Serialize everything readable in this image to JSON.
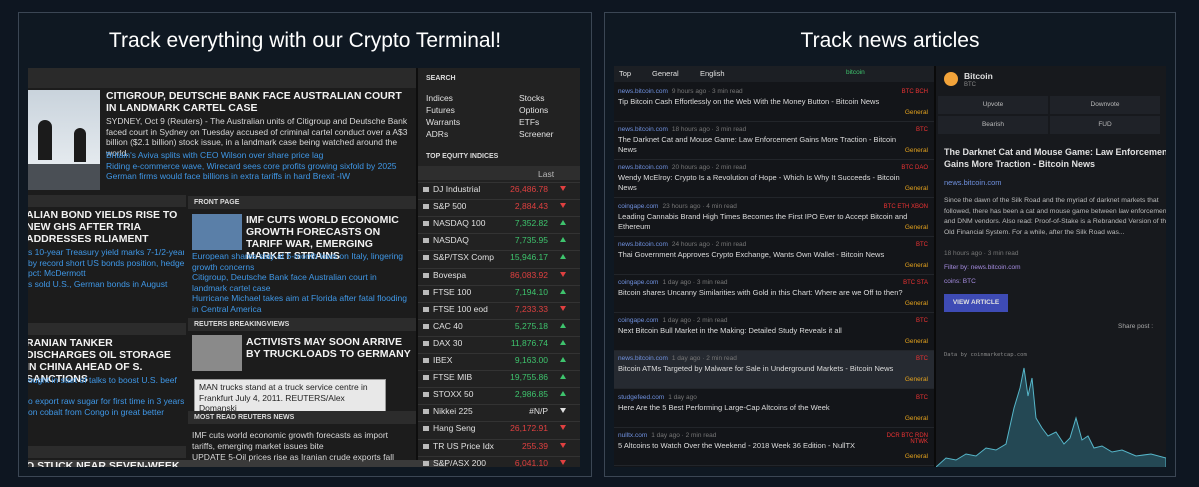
{
  "left": {
    "title": "Track everything with our Crypto Terminal!",
    "top_story": {
      "headline": "CITIGROUP, DEUTSCHE BANK FACE AUSTRALIAN COURT IN LANDMARK CARTEL CASE",
      "body": "SYDNEY, Oct 9 (Reuters) - The Australian units of Citigroup and Deutsche Bank faced court in Sydney on Tuesday accused of criminal cartel conduct over a A$3 billion ($2.1 billion) stock issue, in a landmark case being watched around the world.",
      "links": [
        "Britain's Aviva splits with CEO Wilson over share price lag",
        "Riding e-commerce wave, Wirecard sees core profits growing sixfold by 2025",
        "German firms would face billions in extra tariffs in hard Brexit -IW"
      ]
    },
    "side_stories": [
      {
        "headline": "ALIAN BOND YIELDS RISE TO NEW GHS AFTER TRIA ADDRESSES RLIAMENT",
        "links": [
          "s 10-year Treasury yield marks 7-1/2-year",
          "by record short US bonds position, hedge",
          "pct: McDermott",
          "s sold U.S., German bonds in August"
        ]
      },
      {
        "headline": "RANIAN TANKER DISCHARGES OIL STORAGE IN CHINA AHEAD OF S. SANCTIONS",
        "links": [
          "ought in start of talks to boost U.S. beef",
          "",
          "o export raw sugar for first time in 3 years",
          "on cobalt from Congo in great better"
        ]
      },
      {
        "headline": "O STUCK NEAR SEVEN-WEEK LOW",
        "links": []
      }
    ],
    "front_page": {
      "label": "FRONT PAGE",
      "headline": "IMF CUTS WORLD ECONOMIC GROWTH FORECASTS ON TARIFF WAR, EMERGING MARKET STRAINS",
      "links": [
        "European shares stay at 6-month lows on Italy, lingering growth concerns",
        "Citigroup, Deutsche Bank face Australian court in landmark cartel case",
        "Hurricane Michael takes aim at Florida after fatal flooding in Central America"
      ]
    },
    "breakingviews": {
      "label": "REUTERS BREAKINGVIEWS",
      "headline": "ACTIVISTS MAY SOON ARRIVE BY TRUCKLOADS TO GERMANY",
      "tooltip": "MAN trucks stand at a truck service centre in Frankfurt July 4, 2011. REUTERS/Alex Domanski"
    },
    "most_read": {
      "label": "MOST READ REUTERS NEWS",
      "items": [
        "IMF cuts world economic growth forecasts as import tariffs, emerging market issues bite",
        "UPDATE 5-Oil prices rise as Iranian crude exports fall"
      ]
    },
    "search": {
      "label": "SEARCH",
      "items": [
        "Indices",
        "Stocks",
        "Futures",
        "Options",
        "Warrants",
        "ETFs",
        "ADRs",
        "Screener"
      ]
    },
    "indices": {
      "label": "TOP EQUITY INDICES",
      "column": "Last",
      "rows": [
        {
          "name": "DJ Industrial",
          "last": "26,486.78",
          "color": "#e04040"
        },
        {
          "name": "S&P 500",
          "last": "2,884.43",
          "color": "#e04040"
        },
        {
          "name": "NASDAQ 100",
          "last": "7,352.82",
          "color": "#3ec46d"
        },
        {
          "name": "NASDAQ",
          "last": "7,735.95",
          "color": "#3ec46d"
        },
        {
          "name": "S&P/TSX Comp",
          "last": "15,946.17",
          "color": "#3ec46d"
        },
        {
          "name": "Bovespa",
          "last": "86,083.92",
          "color": "#e04040"
        },
        {
          "name": "FTSE 100",
          "last": "7,194.10",
          "color": "#3ec46d"
        },
        {
          "name": "FTSE 100 eod",
          "last": "7,233.33",
          "color": "#e04040"
        },
        {
          "name": "CAC 40",
          "last": "5,275.18",
          "color": "#3ec46d"
        },
        {
          "name": "DAX 30",
          "last": "11,876.74",
          "color": "#3ec46d"
        },
        {
          "name": "IBEX",
          "last": "9,163.00",
          "color": "#3ec46d"
        },
        {
          "name": "FTSE MIB",
          "last": "19,755.86",
          "color": "#3ec46d"
        },
        {
          "name": "STOXX 50",
          "last": "2,986.85",
          "color": "#3ec46d"
        },
        {
          "name": "Nikkei 225",
          "last": "#N/P",
          "color": "#e0e0e0"
        },
        {
          "name": "Hang Seng",
          "last": "26,172.91",
          "color": "#e04040"
        },
        {
          "name": "TR US Price Idx",
          "last": "255.39",
          "color": "#e04040"
        },
        {
          "name": "S&P/ASX 200",
          "last": "6,041.10",
          "color": "#e04040"
        }
      ]
    }
  },
  "right": {
    "title": "Track news articles",
    "toolbar": {
      "sort": "Top",
      "category": "General",
      "language": "English",
      "filter": "bitcoin"
    },
    "articles": [
      {
        "source": "news.bitcoin.com",
        "meta": "9 hours ago · 3 min read",
        "title": "Tip Bitcoin Cash Effortlessly on the Web With the Money Button - Bitcoin News",
        "tags": "BTC BCH",
        "category": "General"
      },
      {
        "source": "news.bitcoin.com",
        "meta": "18 hours ago · 3 min read",
        "title": "The Darknet Cat and Mouse Game: Law Enforcement Gains More Traction - Bitcoin News",
        "tags": "BTC",
        "category": "General"
      },
      {
        "source": "news.bitcoin.com",
        "meta": "20 hours ago · 2 min read",
        "title": "Wendy McElroy: Crypto Is a Revolution of Hope - Which Is Why It Succeeds - Bitcoin News",
        "tags": "BTC DAO",
        "category": "General"
      },
      {
        "source": "coingape.com",
        "meta": "23 hours ago · 4 min read",
        "title": "Leading Cannabis Brand High Times Becomes the First IPO Ever to Accept Bitcoin and Ethereum",
        "tags": "BTC ETH XBON",
        "category": "General"
      },
      {
        "source": "news.bitcoin.com",
        "meta": "24 hours ago · 2 min read",
        "title": "Thai Government Approves Crypto Exchange, Wants Own Wallet - Bitcoin News",
        "tags": "BTC",
        "category": "General"
      },
      {
        "source": "coingape.com",
        "meta": "1 day ago · 3 min read",
        "title": "Bitcoin shares Uncanny Similarities with Gold in this Chart: Where are we Off to then?",
        "tags": "BTC STA",
        "category": "General"
      },
      {
        "source": "coingape.com",
        "meta": "1 day ago · 2 min read",
        "title": "Next Bitcoin Bull Market in the Making: Detailed Study Reveals it all",
        "tags": "BTC",
        "category": "General"
      },
      {
        "source": "news.bitcoin.com",
        "meta": "1 day ago · 2 min read",
        "title": "Bitcoin ATMs Targeted by Malware for Sale in Underground Markets - Bitcoin News",
        "tags": "BTC",
        "category": "General"
      },
      {
        "source": "studgefeed.com",
        "meta": "1 day ago",
        "title": "Here Are the 5 Best Performing Large-Cap Altcoins of the Week",
        "tags": "BTC",
        "category": "General"
      },
      {
        "source": "nulltx.com",
        "meta": "1 day ago · 2 min read",
        "title": "5 Altcoins to Watch Over the Weekend - 2018 Week 36 Edition - NullTX",
        "tags": "DCR BTC RDN NTWK",
        "category": "General"
      }
    ],
    "detail": {
      "coin": "Bitcoin",
      "symbol": "BTC",
      "buttons": [
        "Upvote",
        "Downvote",
        "Bearish",
        "FUD"
      ],
      "title": "The Darknet Cat and Mouse Game: Law Enforcement Gains More Traction - Bitcoin News",
      "source": "news.bitcoin.com",
      "body": "Since the dawn of the Silk Road and the myriad of darknet markets that followed, there has been a cat and mouse game between law enforcement and DNM vendors. Also read: Proof-of-Stake is a Rebranded Version of the Old Financial System. For a while, after the Silk Road was...",
      "meta": "18 hours ago · 3 min read",
      "filter": "Filter by: news.bitcoin.com",
      "coins": "coins: BTC",
      "action": "VIEW ARTICLE",
      "share": "Share post :",
      "chart_credit": "Data by coinmarketcap.com"
    }
  }
}
